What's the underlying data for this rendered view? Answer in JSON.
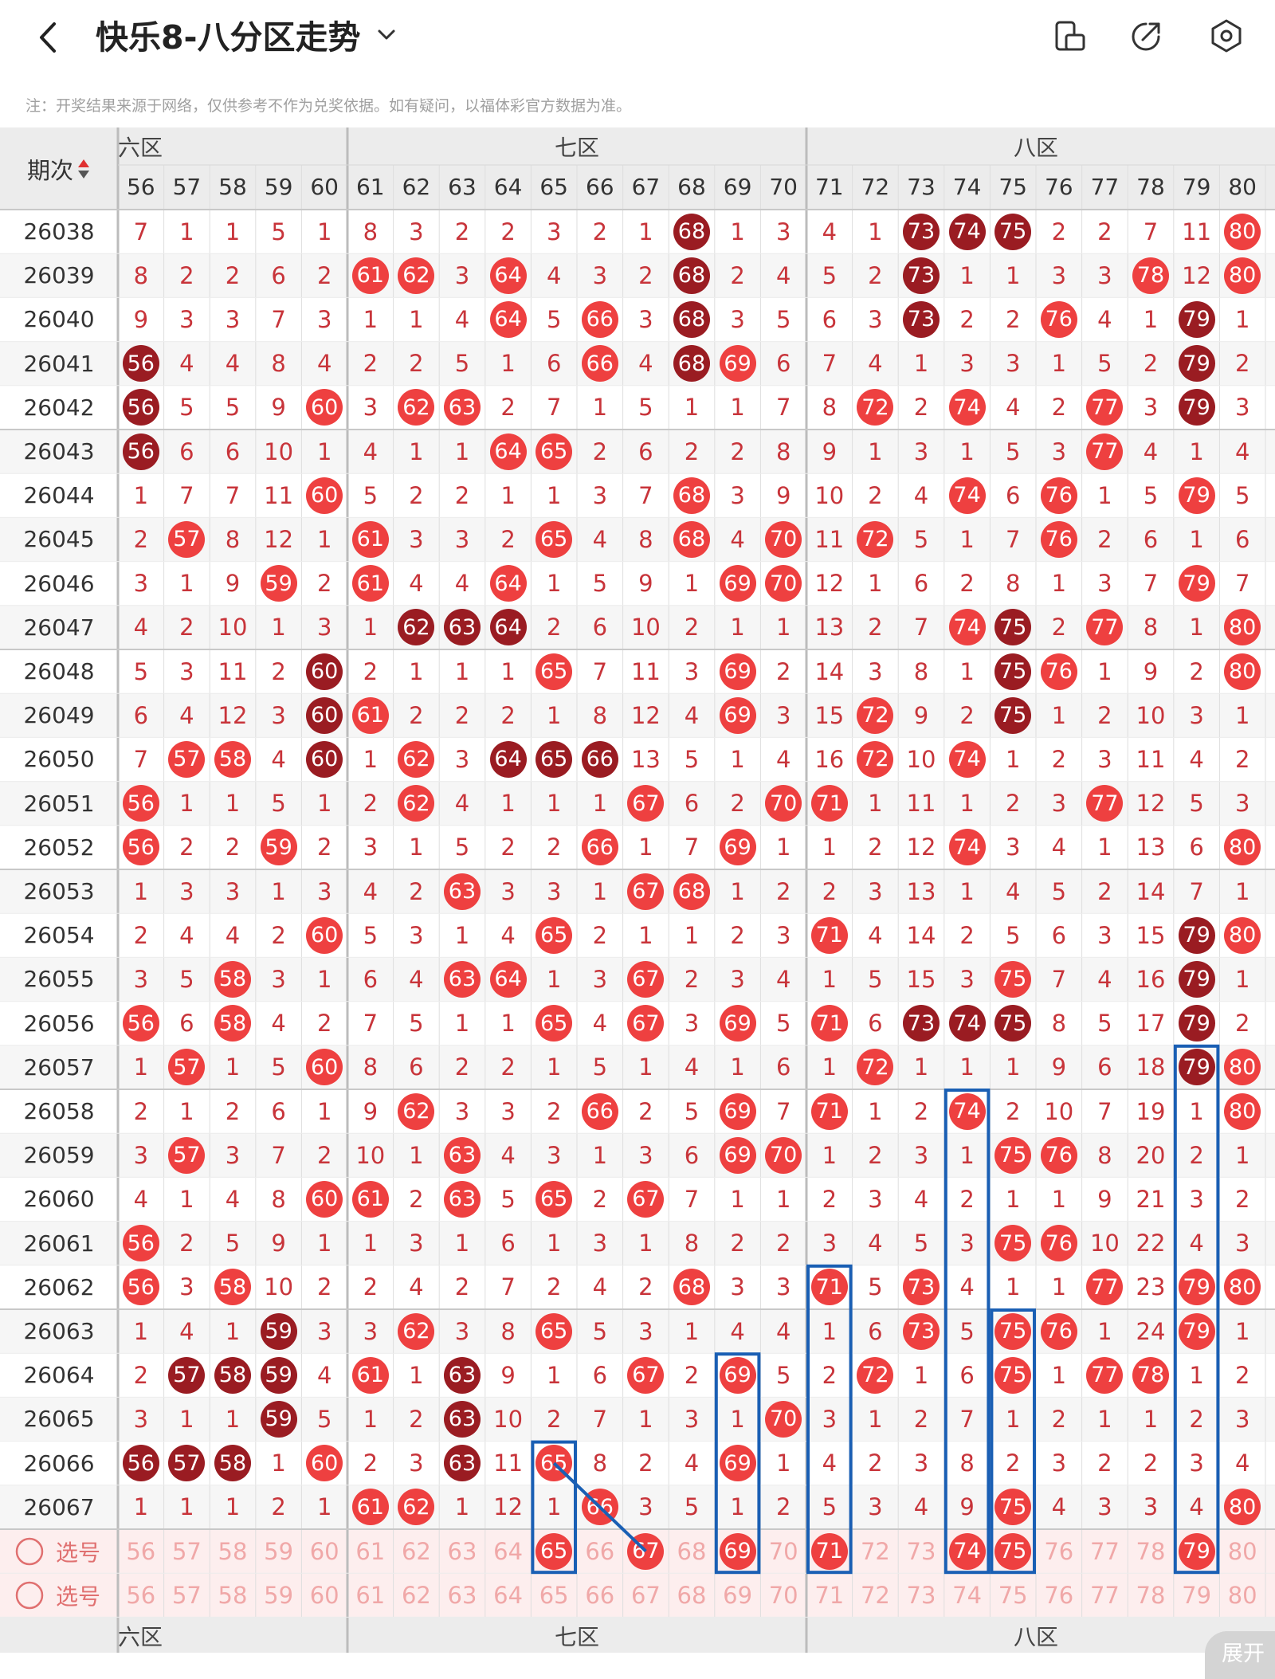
{
  "header": {
    "back_icon": "chevron-left-icon",
    "title": "快乐8-八分区走势",
    "title_caret_icon": "chevron-down-icon",
    "icons": [
      "phone-rotate-icon",
      "share-arrow-icon",
      "settings-hexagon-icon"
    ]
  },
  "notice": "注：开奖结果来源于网络，仅供参考不作为兑奖依据。如有疑问，以福体彩官方数据为准。",
  "table": {
    "period_header": "期次",
    "sort_icon": "sort-arrows-icon",
    "zones": [
      {
        "name": "六区",
        "visible_label": "六区",
        "columns": [
          56,
          57,
          58,
          59,
          60
        ]
      },
      {
        "name": "七区",
        "visible_label": "七区",
        "columns": [
          61,
          62,
          63,
          64,
          65,
          66,
          67,
          68,
          69,
          70
        ]
      },
      {
        "name": "八区",
        "visible_label": "八区",
        "columns": [
          71,
          72,
          73,
          74,
          75,
          76,
          77,
          78,
          79,
          80
        ]
      }
    ],
    "rows": [
      {
        "period": "26038",
        "cells": [
          "7",
          "1",
          "1",
          "5",
          "1",
          "8",
          "3",
          "2",
          "2",
          "3",
          "2",
          "1",
          "68",
          "1",
          "3",
          "4",
          "1",
          "73",
          "74",
          "75",
          "2",
          "2",
          "7",
          "11",
          "80"
        ]
      },
      {
        "period": "26039",
        "cells": [
          "8",
          "2",
          "2",
          "6",
          "2",
          "61",
          "62",
          "3",
          "64",
          "4",
          "3",
          "2",
          "68",
          "2",
          "4",
          "5",
          "2",
          "73",
          "1",
          "1",
          "3",
          "3",
          "78",
          "12",
          "80"
        ]
      },
      {
        "period": "26040",
        "cells": [
          "9",
          "3",
          "3",
          "7",
          "3",
          "1",
          "1",
          "4",
          "64",
          "5",
          "66",
          "3",
          "68",
          "3",
          "5",
          "6",
          "3",
          "73",
          "2",
          "2",
          "76",
          "4",
          "1",
          "79",
          "1"
        ]
      },
      {
        "period": "26041",
        "cells": [
          "56",
          "4",
          "4",
          "8",
          "4",
          "2",
          "2",
          "5",
          "1",
          "6",
          "66",
          "4",
          "68",
          "69",
          "6",
          "7",
          "4",
          "1",
          "3",
          "3",
          "1",
          "5",
          "2",
          "79",
          "2"
        ]
      },
      {
        "period": "26042",
        "cells": [
          "56",
          "5",
          "5",
          "9",
          "60",
          "3",
          "62",
          "63",
          "2",
          "7",
          "1",
          "5",
          "1",
          "1",
          "7",
          "8",
          "72",
          "2",
          "74",
          "4",
          "2",
          "77",
          "3",
          "79",
          "3"
        ]
      },
      {
        "period": "26043",
        "cells": [
          "56",
          "6",
          "6",
          "10",
          "1",
          "4",
          "1",
          "1",
          "64",
          "65",
          "2",
          "6",
          "2",
          "2",
          "8",
          "9",
          "1",
          "3",
          "1",
          "5",
          "3",
          "77",
          "4",
          "1",
          "4"
        ]
      },
      {
        "period": "26044",
        "cells": [
          "1",
          "7",
          "7",
          "11",
          "60",
          "5",
          "2",
          "2",
          "1",
          "1",
          "3",
          "7",
          "68",
          "3",
          "9",
          "10",
          "2",
          "4",
          "74",
          "6",
          "76",
          "1",
          "5",
          "79",
          "5"
        ]
      },
      {
        "period": "26045",
        "cells": [
          "2",
          "57",
          "8",
          "12",
          "1",
          "61",
          "3",
          "3",
          "2",
          "65",
          "4",
          "8",
          "68",
          "4",
          "70",
          "11",
          "72",
          "5",
          "1",
          "7",
          "76",
          "2",
          "6",
          "1",
          "6"
        ]
      },
      {
        "period": "26046",
        "cells": [
          "3",
          "1",
          "9",
          "59",
          "2",
          "61",
          "4",
          "4",
          "64",
          "1",
          "5",
          "9",
          "1",
          "69",
          "70",
          "12",
          "1",
          "6",
          "2",
          "8",
          "1",
          "3",
          "7",
          "79",
          "7"
        ]
      },
      {
        "period": "26047",
        "cells": [
          "4",
          "2",
          "10",
          "1",
          "3",
          "1",
          "62",
          "63",
          "64",
          "2",
          "6",
          "10",
          "2",
          "1",
          "1",
          "13",
          "2",
          "7",
          "74",
          "75",
          "2",
          "77",
          "8",
          "1",
          "80"
        ]
      },
      {
        "period": "26048",
        "cells": [
          "5",
          "3",
          "11",
          "2",
          "60",
          "2",
          "1",
          "1",
          "1",
          "65",
          "7",
          "11",
          "3",
          "69",
          "2",
          "14",
          "3",
          "8",
          "1",
          "75",
          "76",
          "1",
          "9",
          "2",
          "80"
        ]
      },
      {
        "period": "26049",
        "cells": [
          "6",
          "4",
          "12",
          "3",
          "60",
          "61",
          "2",
          "2",
          "2",
          "1",
          "8",
          "12",
          "4",
          "69",
          "3",
          "15",
          "72",
          "9",
          "2",
          "75",
          "1",
          "2",
          "10",
          "3",
          "1"
        ]
      },
      {
        "period": "26050",
        "cells": [
          "7",
          "57",
          "58",
          "4",
          "60",
          "1",
          "62",
          "3",
          "64",
          "65",
          "66",
          "13",
          "5",
          "1",
          "4",
          "16",
          "72",
          "10",
          "74",
          "1",
          "2",
          "3",
          "11",
          "4",
          "2"
        ]
      },
      {
        "period": "26051",
        "cells": [
          "56",
          "1",
          "1",
          "5",
          "1",
          "2",
          "62",
          "4",
          "1",
          "1",
          "1",
          "67",
          "6",
          "2",
          "70",
          "71",
          "1",
          "11",
          "1",
          "2",
          "3",
          "77",
          "12",
          "5",
          "3"
        ]
      },
      {
        "period": "26052",
        "cells": [
          "56",
          "2",
          "2",
          "59",
          "2",
          "3",
          "1",
          "5",
          "2",
          "2",
          "66",
          "1",
          "7",
          "69",
          "1",
          "1",
          "2",
          "12",
          "74",
          "3",
          "4",
          "1",
          "13",
          "6",
          "80"
        ]
      },
      {
        "period": "26053",
        "cells": [
          "1",
          "3",
          "3",
          "1",
          "3",
          "4",
          "2",
          "63",
          "3",
          "3",
          "1",
          "67",
          "68",
          "1",
          "2",
          "2",
          "3",
          "13",
          "1",
          "4",
          "5",
          "2",
          "14",
          "7",
          "1"
        ]
      },
      {
        "period": "26054",
        "cells": [
          "2",
          "4",
          "4",
          "2",
          "60",
          "5",
          "3",
          "1",
          "4",
          "65",
          "2",
          "1",
          "1",
          "2",
          "3",
          "71",
          "4",
          "14",
          "2",
          "5",
          "6",
          "3",
          "15",
          "79",
          "80"
        ]
      },
      {
        "period": "26055",
        "cells": [
          "3",
          "5",
          "58",
          "3",
          "1",
          "6",
          "4",
          "63",
          "64",
          "1",
          "3",
          "67",
          "2",
          "3",
          "4",
          "1",
          "5",
          "15",
          "3",
          "75",
          "7",
          "4",
          "16",
          "79",
          "1"
        ]
      },
      {
        "period": "26056",
        "cells": [
          "56",
          "6",
          "58",
          "4",
          "2",
          "7",
          "5",
          "1",
          "1",
          "65",
          "4",
          "67",
          "3",
          "69",
          "5",
          "71",
          "6",
          "73",
          "74",
          "75",
          "8",
          "5",
          "17",
          "79",
          "2"
        ]
      },
      {
        "period": "26057",
        "cells": [
          "1",
          "57",
          "1",
          "5",
          "60",
          "8",
          "6",
          "2",
          "2",
          "1",
          "5",
          "1",
          "4",
          "1",
          "6",
          "1",
          "72",
          "1",
          "1",
          "1",
          "9",
          "6",
          "18",
          "79",
          "80"
        ]
      },
      {
        "period": "26058",
        "cells": [
          "2",
          "1",
          "2",
          "6",
          "1",
          "9",
          "62",
          "3",
          "3",
          "2",
          "66",
          "2",
          "5",
          "69",
          "7",
          "71",
          "1",
          "2",
          "74",
          "2",
          "10",
          "7",
          "19",
          "1",
          "80"
        ]
      },
      {
        "period": "26059",
        "cells": [
          "3",
          "57",
          "3",
          "7",
          "2",
          "10",
          "1",
          "63",
          "4",
          "3",
          "1",
          "3",
          "6",
          "69",
          "70",
          "1",
          "2",
          "3",
          "1",
          "75",
          "76",
          "8",
          "20",
          "2",
          "1"
        ]
      },
      {
        "period": "26060",
        "cells": [
          "4",
          "1",
          "4",
          "8",
          "60",
          "61",
          "2",
          "63",
          "5",
          "65",
          "2",
          "67",
          "7",
          "1",
          "1",
          "2",
          "3",
          "4",
          "2",
          "1",
          "1",
          "9",
          "21",
          "3",
          "2"
        ]
      },
      {
        "period": "26061",
        "cells": [
          "56",
          "2",
          "5",
          "9",
          "1",
          "1",
          "3",
          "1",
          "6",
          "1",
          "3",
          "1",
          "8",
          "2",
          "2",
          "3",
          "4",
          "5",
          "3",
          "75",
          "76",
          "10",
          "22",
          "4",
          "3"
        ]
      },
      {
        "period": "26062",
        "cells": [
          "56",
          "3",
          "58",
          "10",
          "2",
          "2",
          "4",
          "2",
          "7",
          "2",
          "4",
          "2",
          "68",
          "3",
          "3",
          "71",
          "5",
          "73",
          "4",
          "1",
          "1",
          "77",
          "23",
          "79",
          "80"
        ]
      },
      {
        "period": "26063",
        "cells": [
          "1",
          "4",
          "1",
          "59",
          "3",
          "3",
          "62",
          "3",
          "8",
          "65",
          "5",
          "3",
          "1",
          "4",
          "4",
          "1",
          "6",
          "73",
          "5",
          "75",
          "76",
          "1",
          "24",
          "79",
          "1"
        ]
      },
      {
        "period": "26064",
        "cells": [
          "2",
          "57",
          "58",
          "59",
          "4",
          "61",
          "1",
          "63",
          "9",
          "1",
          "6",
          "67",
          "2",
          "69",
          "5",
          "2",
          "72",
          "1",
          "6",
          "75",
          "1",
          "77",
          "78",
          "1",
          "2"
        ]
      },
      {
        "period": "26065",
        "cells": [
          "3",
          "1",
          "1",
          "59",
          "5",
          "1",
          "2",
          "63",
          "10",
          "2",
          "7",
          "1",
          "3",
          "1",
          "70",
          "3",
          "1",
          "2",
          "7",
          "1",
          "2",
          "1",
          "1",
          "2",
          "3"
        ]
      },
      {
        "period": "26066",
        "cells": [
          "56",
          "57",
          "58",
          "1",
          "60",
          "2",
          "3",
          "63",
          "11",
          "65",
          "8",
          "2",
          "4",
          "69",
          "1",
          "4",
          "2",
          "3",
          "8",
          "2",
          "3",
          "2",
          "2",
          "3",
          "4"
        ]
      },
      {
        "period": "26067",
        "cells": [
          "1",
          "1",
          "1",
          "2",
          "1",
          "61",
          "62",
          "1",
          "12",
          "1",
          "66",
          "3",
          "5",
          "1",
          "2",
          "5",
          "3",
          "4",
          "9",
          "75",
          "4",
          "3",
          "3",
          "4",
          "80"
        ]
      }
    ],
    "dark_balls": [
      "26038-68",
      "26038-73",
      "26038-74",
      "26038-75",
      "26039-68",
      "26039-73",
      "26040-68",
      "26040-73",
      "26040-79",
      "26041-56",
      "26041-68",
      "26041-79",
      "26042-56",
      "26042-79",
      "26043-56",
      "26047-62",
      "26047-63",
      "26047-64",
      "26047-75",
      "26048-60",
      "26048-75",
      "26049-60",
      "26049-75",
      "26050-60",
      "26050-64",
      "26050-65",
      "26050-66",
      "26054-79",
      "26055-79",
      "26056-73",
      "26056-74",
      "26056-75",
      "26056-79",
      "26057-79",
      "26063-59",
      "26064-57",
      "26064-58",
      "26064-59",
      "26064-63",
      "26065-59",
      "26065-63",
      "26066-56",
      "26066-57",
      "26066-58",
      "26066-63"
    ],
    "pick_rows": [
      {
        "label": "选号",
        "radio_icon": "radio-circle-icon",
        "selected": [
          65,
          67,
          69,
          71,
          74,
          75,
          79
        ]
      },
      {
        "label": "选号",
        "radio_icon": "radio-circle-icon",
        "selected": []
      }
    ],
    "footer_zones": [
      "六区",
      "七区",
      "八区"
    ],
    "expand_button": "展开",
    "highlight_boxes": [
      {
        "column": 65,
        "from": "26066",
        "to": "pick"
      },
      {
        "column": 69,
        "from": "26064",
        "to": "pick"
      },
      {
        "column": 71,
        "from": "26062",
        "to": "pick"
      },
      {
        "column": 74,
        "from": "26058",
        "to": "pick"
      },
      {
        "column": 75,
        "from": "26063",
        "to": "pick"
      },
      {
        "column": 79,
        "from": "26057",
        "to": "pick"
      }
    ]
  },
  "colors": {
    "ball_red": "#ee4040",
    "ball_dark": "#9a1c22",
    "number_red": "#c8343a",
    "box_blue": "#1a5fb4",
    "header_gray": "#ececec",
    "pick_row_bg": "#fdeeee"
  }
}
